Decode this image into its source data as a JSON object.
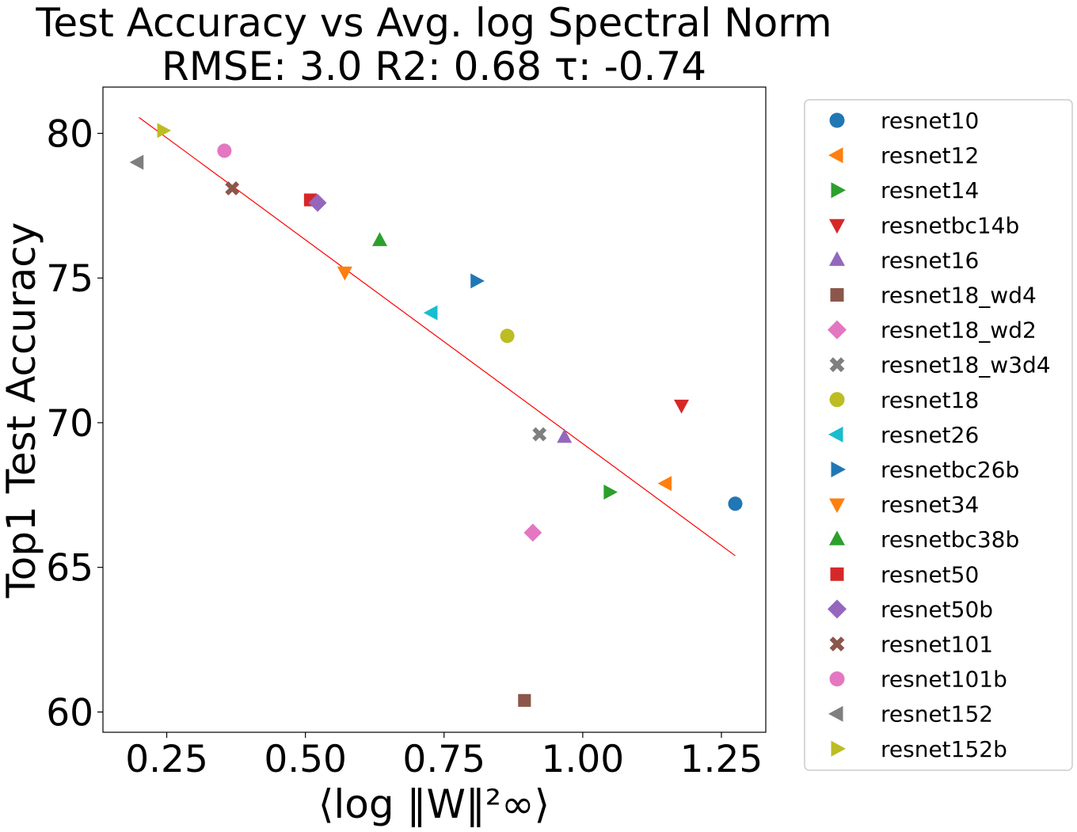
{
  "chart_data": {
    "type": "scatter",
    "title_line1": "Test Accuracy vs Avg. log Spectral Norm",
    "title_line2": "RMSE: 3.0 R2: 0.68 τ: -0.74",
    "ylabel": "Top1 Test Accuracy",
    "xlabel": "⟨log ‖W‖²∞⟩",
    "xlim": [
      0.135,
      1.33
    ],
    "ylim": [
      59.3,
      81.6
    ],
    "x_ticks": [
      0.25,
      0.5,
      0.75,
      1.0,
      1.25
    ],
    "x_tick_labels": [
      "0.25",
      "0.50",
      "0.75",
      "1.00",
      "1.25"
    ],
    "y_ticks": [
      60,
      65,
      70,
      75,
      80
    ],
    "y_tick_labels": [
      "60",
      "65",
      "70",
      "75",
      "80"
    ],
    "grid": false,
    "legend_position": "outside-right",
    "fit_line": {
      "color": "#ff0000",
      "x": [
        0.2,
        1.275
      ],
      "y": [
        80.55,
        65.4
      ]
    },
    "series": [
      {
        "name": "resnet10",
        "marker": "circle",
        "color": "#1f77b4",
        "x": 1.275,
        "y": 67.2
      },
      {
        "name": "resnet12",
        "marker": "tri-left",
        "color": "#ff7f0e",
        "x": 1.15,
        "y": 67.9
      },
      {
        "name": "resnet14",
        "marker": "tri-right",
        "color": "#2ca02c",
        "x": 1.048,
        "y": 67.6
      },
      {
        "name": "resnetbc14b",
        "marker": "tri-down",
        "color": "#d62728",
        "x": 1.178,
        "y": 70.6
      },
      {
        "name": "resnet16",
        "marker": "tri-up",
        "color": "#9467bd",
        "x": 0.967,
        "y": 69.5
      },
      {
        "name": "resnet18_wd4",
        "marker": "square",
        "color": "#8c564b",
        "x": 0.895,
        "y": 60.4
      },
      {
        "name": "resnet18_wd2",
        "marker": "diamond",
        "color": "#e377c2",
        "x": 0.91,
        "y": 66.2
      },
      {
        "name": "resnet18_w3d4",
        "marker": "x",
        "color": "#7f7f7f",
        "x": 0.922,
        "y": 69.6
      },
      {
        "name": "resnet18",
        "marker": "circle",
        "color": "#bcbd22",
        "x": 0.864,
        "y": 73.0
      },
      {
        "name": "resnet26",
        "marker": "tri-left",
        "color": "#17becf",
        "x": 0.728,
        "y": 73.8
      },
      {
        "name": "resnetbc26b",
        "marker": "tri-right",
        "color": "#1f77b4",
        "x": 0.808,
        "y": 74.9
      },
      {
        "name": "resnet34",
        "marker": "tri-down",
        "color": "#ff7f0e",
        "x": 0.571,
        "y": 75.2
      },
      {
        "name": "resnetbc38b",
        "marker": "tri-up",
        "color": "#2ca02c",
        "x": 0.634,
        "y": 76.3
      },
      {
        "name": "resnet50",
        "marker": "square",
        "color": "#d62728",
        "x": 0.509,
        "y": 77.7
      },
      {
        "name": "resnet50b",
        "marker": "diamond",
        "color": "#9467bd",
        "x": 0.522,
        "y": 77.6
      },
      {
        "name": "resnet101",
        "marker": "x",
        "color": "#8c564b",
        "x": 0.368,
        "y": 78.1
      },
      {
        "name": "resnet101b",
        "marker": "circle",
        "color": "#e377c2",
        "x": 0.354,
        "y": 79.4
      },
      {
        "name": "resnet152",
        "marker": "tri-left",
        "color": "#7f7f7f",
        "x": 0.198,
        "y": 79.0
      },
      {
        "name": "resnet152b",
        "marker": "tri-right",
        "color": "#bcbd22",
        "x": 0.243,
        "y": 80.1
      }
    ]
  }
}
